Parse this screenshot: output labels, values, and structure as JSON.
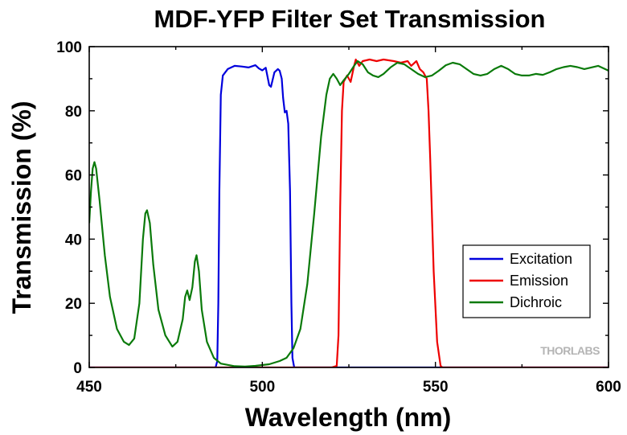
{
  "chart_data": {
    "type": "line",
    "title": "MDF-YFP Filter Set Transmission",
    "xlabel": "Wavelength (nm)",
    "ylabel": "Transmission (%)",
    "xlim": [
      450,
      600
    ],
    "ylim": [
      0,
      100
    ],
    "x_ticks": [
      450,
      500,
      550,
      600
    ],
    "y_ticks": [
      0,
      20,
      40,
      60,
      80,
      100
    ],
    "grid": false,
    "legend_position": "lower-right",
    "watermark": "THORLABS",
    "series": [
      {
        "name": "Excitation",
        "color": "#0000dd",
        "points": [
          [
            450,
            0
          ],
          [
            486.5,
            0
          ],
          [
            487,
            2
          ],
          [
            487.3,
            20
          ],
          [
            487.6,
            55
          ],
          [
            488,
            85
          ],
          [
            488.6,
            91
          ],
          [
            490,
            93
          ],
          [
            492,
            94
          ],
          [
            494,
            93.8
          ],
          [
            496,
            93.5
          ],
          [
            498,
            94.2
          ],
          [
            499,
            93.2
          ],
          [
            500,
            92.6
          ],
          [
            501,
            93.4
          ],
          [
            502,
            88
          ],
          [
            502.5,
            87.5
          ],
          [
            503.5,
            92
          ],
          [
            504.5,
            93
          ],
          [
            505,
            92.5
          ],
          [
            505.6,
            90
          ],
          [
            506,
            84
          ],
          [
            506.5,
            79.5
          ],
          [
            507,
            80
          ],
          [
            507.5,
            76
          ],
          [
            508,
            55
          ],
          [
            508.4,
            20
          ],
          [
            508.7,
            3
          ],
          [
            509.2,
            0
          ],
          [
            600,
            0
          ]
        ]
      },
      {
        "name": "Emission",
        "color": "#ee0000",
        "points": [
          [
            450,
            0
          ],
          [
            520,
            0
          ],
          [
            521.5,
            0.5
          ],
          [
            522,
            10
          ],
          [
            522.5,
            50
          ],
          [
            523,
            80
          ],
          [
            523.5,
            89
          ],
          [
            524.5,
            91
          ],
          [
            525.5,
            89
          ],
          [
            526.5,
            94
          ],
          [
            527,
            96
          ],
          [
            528,
            94
          ],
          [
            529,
            95.5
          ],
          [
            531,
            96
          ],
          [
            533,
            95.5
          ],
          [
            535,
            96
          ],
          [
            538,
            95.5
          ],
          [
            540,
            95
          ],
          [
            542,
            95.5
          ],
          [
            543,
            94
          ],
          [
            544.5,
            95.5
          ],
          [
            545.5,
            93
          ],
          [
            546.5,
            92
          ],
          [
            547.5,
            90
          ],
          [
            548,
            80
          ],
          [
            548.5,
            65
          ],
          [
            549.5,
            30
          ],
          [
            550.5,
            8
          ],
          [
            551.5,
            0.5
          ],
          [
            552,
            0
          ],
          [
            600,
            0
          ]
        ]
      },
      {
        "name": "Dichroic",
        "color": "#0a7a0a",
        "points": [
          [
            450,
            45
          ],
          [
            450.5,
            55
          ],
          [
            451,
            62
          ],
          [
            451.5,
            64
          ],
          [
            452,
            62
          ],
          [
            453,
            52
          ],
          [
            454.5,
            35
          ],
          [
            456,
            22
          ],
          [
            458,
            12
          ],
          [
            460,
            8
          ],
          [
            461.5,
            7
          ],
          [
            463,
            9
          ],
          [
            464.5,
            20
          ],
          [
            465.5,
            40
          ],
          [
            466.2,
            48
          ],
          [
            466.7,
            49
          ],
          [
            467.5,
            45
          ],
          [
            468.5,
            32
          ],
          [
            470,
            18
          ],
          [
            472,
            10
          ],
          [
            474,
            6.5
          ],
          [
            475.5,
            8
          ],
          [
            477,
            15
          ],
          [
            477.7,
            22
          ],
          [
            478.3,
            24
          ],
          [
            479,
            21
          ],
          [
            479.8,
            25
          ],
          [
            480.5,
            33
          ],
          [
            481,
            35
          ],
          [
            481.7,
            30
          ],
          [
            482.5,
            18
          ],
          [
            484,
            8
          ],
          [
            486,
            3
          ],
          [
            488,
            1.2
          ],
          [
            492,
            0.4
          ],
          [
            495,
            0.3
          ],
          [
            498,
            0.5
          ],
          [
            502,
            1
          ],
          [
            505,
            2
          ],
          [
            507,
            3
          ],
          [
            509,
            6
          ],
          [
            511,
            12
          ],
          [
            513,
            26
          ],
          [
            515,
            48
          ],
          [
            517,
            72
          ],
          [
            518.5,
            85
          ],
          [
            519.5,
            90
          ],
          [
            520.5,
            91.5
          ],
          [
            521.5,
            90
          ],
          [
            522.5,
            88
          ],
          [
            523.5,
            89.5
          ],
          [
            525,
            91.5
          ],
          [
            526.5,
            94
          ],
          [
            527.5,
            95.5
          ],
          [
            529,
            94.5
          ],
          [
            530.5,
            92
          ],
          [
            532,
            91
          ],
          [
            533.5,
            90.5
          ],
          [
            535,
            91.5
          ],
          [
            537,
            93.5
          ],
          [
            539,
            95
          ],
          [
            541,
            94.5
          ],
          [
            543,
            93
          ],
          [
            545,
            91.5
          ],
          [
            547,
            90.5
          ],
          [
            549,
            91
          ],
          [
            551,
            92.5
          ],
          [
            553,
            94.2
          ],
          [
            555,
            95
          ],
          [
            557,
            94.5
          ],
          [
            559,
            93
          ],
          [
            561,
            91.5
          ],
          [
            563,
            91
          ],
          [
            565,
            91.5
          ],
          [
            567,
            93
          ],
          [
            569,
            94
          ],
          [
            571,
            93
          ],
          [
            573,
            91.5
          ],
          [
            575,
            91
          ],
          [
            577,
            91
          ],
          [
            579,
            91.5
          ],
          [
            581,
            91.2
          ],
          [
            583,
            92
          ],
          [
            585,
            93
          ],
          [
            587,
            93.6
          ],
          [
            589,
            94
          ],
          [
            591,
            93.6
          ],
          [
            593,
            93
          ],
          [
            595,
            93.5
          ],
          [
            597,
            94
          ],
          [
            598,
            93.5
          ],
          [
            600,
            92.5
          ]
        ]
      }
    ]
  }
}
